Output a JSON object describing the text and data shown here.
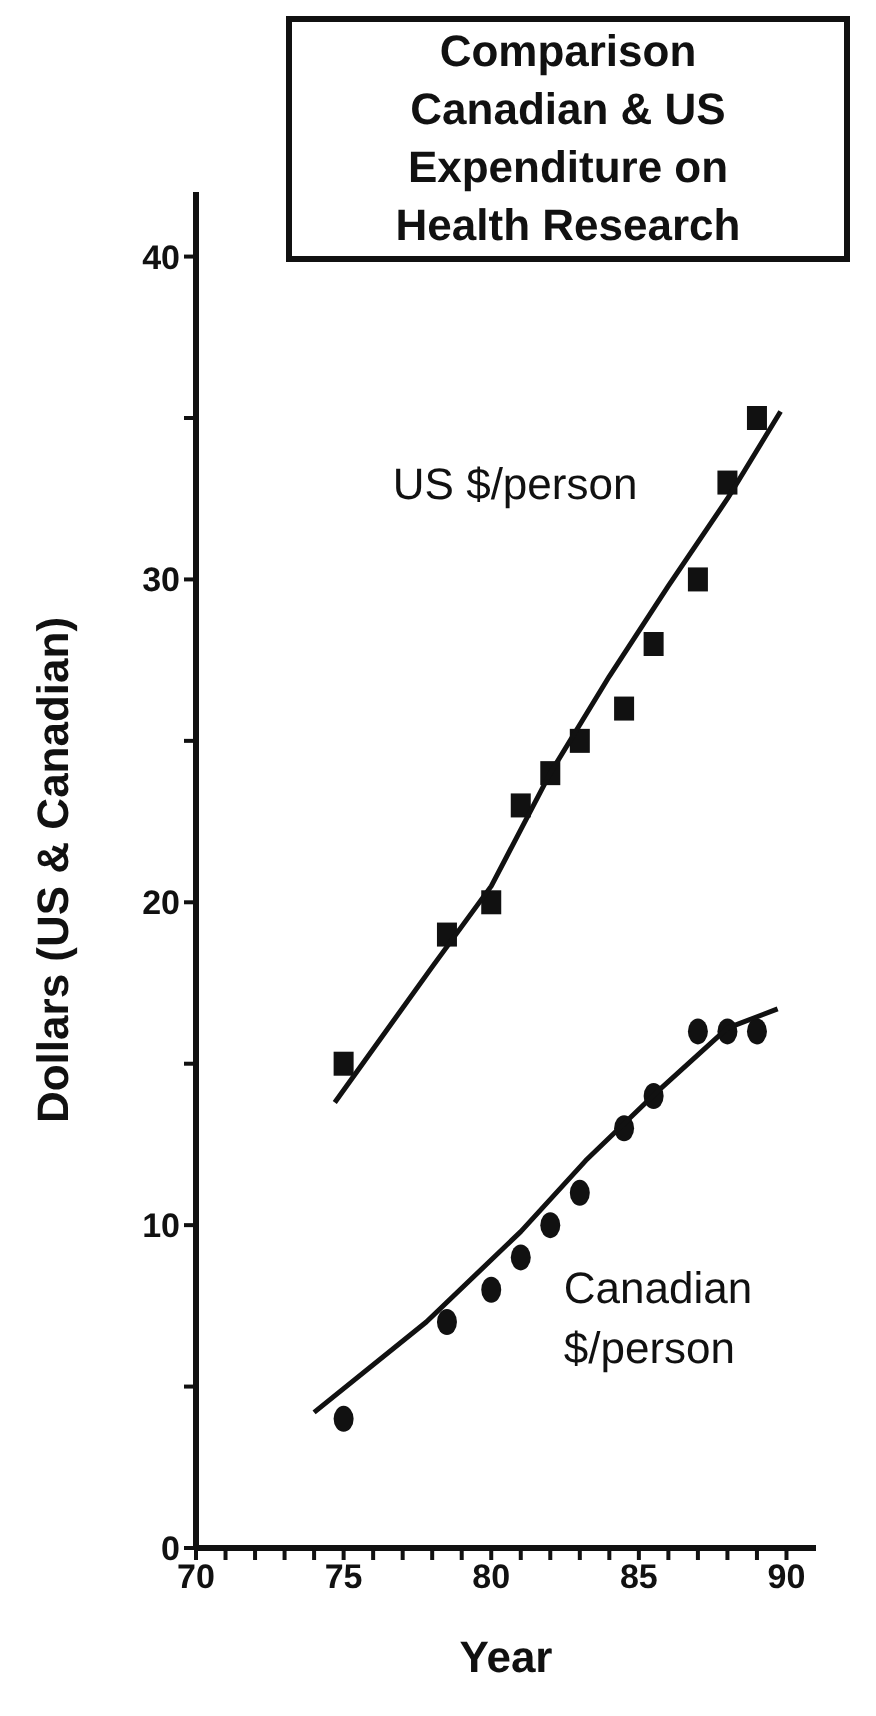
{
  "chart_data": {
    "type": "scatter",
    "title": "Comparison\nCanadian & US\nExpenditure on\nHealth Research",
    "xlabel": "Year",
    "ylabel": "Dollars (US & Canadian)",
    "xlim": [
      70,
      91
    ],
    "xticks": [
      70,
      {
        "value": 71,
        "label": null
      },
      {
        "value": 72,
        "label": null
      },
      {
        "value": 73,
        "label": null
      },
      {
        "value": 74,
        "label": null
      },
      75,
      {
        "value": 76,
        "label": null
      },
      {
        "value": 77,
        "label": null
      },
      {
        "value": 78,
        "label": null
      },
      {
        "value": 79,
        "label": null
      },
      80,
      {
        "value": 81,
        "label": null
      },
      {
        "value": 82,
        "label": null
      },
      {
        "value": 83,
        "label": null
      },
      {
        "value": 84,
        "label": null
      },
      85,
      {
        "value": 86,
        "label": null
      },
      {
        "value": 87,
        "label": null
      },
      {
        "value": 88,
        "label": null
      },
      {
        "value": 89,
        "label": null
      },
      90
    ],
    "ylim": [
      0,
      42
    ],
    "yticks": [
      0,
      {
        "value": 5,
        "label": null
      },
      10,
      {
        "value": 15,
        "label": null
      },
      20,
      {
        "value": 25,
        "label": null
      },
      30,
      {
        "value": 35,
        "label": null
      },
      40
    ],
    "series": [
      {
        "name": "US $/person",
        "marker": "square",
        "color": "#111111",
        "x": [
          75,
          78.5,
          80,
          81,
          82,
          83,
          84.5,
          85.5,
          87,
          88,
          89
        ],
        "values": [
          15,
          19,
          20,
          23,
          24,
          25,
          26,
          28,
          30,
          33,
          35
        ]
      },
      {
        "name": "Canadian\n$/person",
        "marker": "circle",
        "color": "#111111",
        "x": [
          75,
          78.5,
          80,
          81,
          82,
          83,
          84.5,
          85.5,
          87,
          88,
          89
        ],
        "values": [
          4,
          7,
          8,
          9,
          10,
          11,
          13,
          14,
          16,
          16,
          16
        ]
      },
      {
        "type": "line",
        "marker": "none",
        "color": "#111111",
        "x": [
          74.7,
          78,
          80,
          82,
          84,
          86,
          88,
          89.8
        ],
        "values": [
          13.8,
          18,
          20.5,
          24,
          27,
          29.8,
          32.5,
          35.2
        ]
      },
      {
        "type": "line",
        "marker": "none",
        "color": "#111111",
        "x": [
          74,
          77.8,
          81,
          83.2,
          85.7,
          88,
          89.7
        ],
        "values": [
          4.2,
          7,
          9.8,
          12,
          14.2,
          16.1,
          16.7
        ]
      }
    ]
  }
}
